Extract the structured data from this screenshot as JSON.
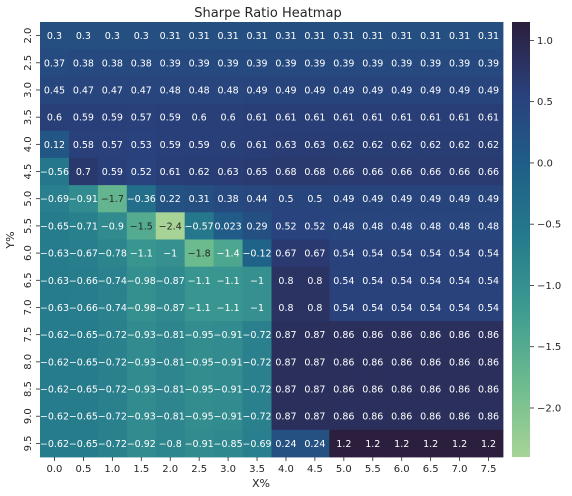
{
  "chart_data": {
    "type": "heatmap",
    "title": "Sharpe Ratio Heatmap",
    "xlabel": "X%",
    "ylabel": "Y%",
    "x_categories": [
      "0.0",
      "0.5",
      "1.0",
      "1.5",
      "2.0",
      "2.5",
      "3.0",
      "3.5",
      "4.0",
      "4.5",
      "5.0",
      "5.5",
      "6.0",
      "6.5",
      "7.0",
      "7.5"
    ],
    "y_categories": [
      "2.0",
      "2.5",
      "3.0",
      "3.5",
      "4.0",
      "4.5",
      "5.0",
      "5.5",
      "6.0",
      "6.5",
      "7.0",
      "7.5",
      "8.0",
      "8.5",
      "9.0",
      "9.5"
    ],
    "values": [
      [
        0.3,
        0.3,
        0.3,
        0.3,
        0.31,
        0.31,
        0.31,
        0.31,
        0.31,
        0.31,
        0.31,
        0.31,
        0.31,
        0.31,
        0.31,
        0.31
      ],
      [
        0.37,
        0.38,
        0.38,
        0.38,
        0.39,
        0.39,
        0.39,
        0.39,
        0.39,
        0.39,
        0.39,
        0.39,
        0.39,
        0.39,
        0.39,
        0.39
      ],
      [
        0.45,
        0.47,
        0.47,
        0.47,
        0.48,
        0.48,
        0.48,
        0.49,
        0.49,
        0.49,
        0.49,
        0.49,
        0.49,
        0.49,
        0.49,
        0.49
      ],
      [
        0.6,
        0.59,
        0.59,
        0.57,
        0.59,
        0.6,
        0.6,
        0.61,
        0.61,
        0.61,
        0.61,
        0.61,
        0.61,
        0.61,
        0.61,
        0.61
      ],
      [
        0.12,
        0.58,
        0.57,
        0.53,
        0.59,
        0.59,
        0.6,
        0.61,
        0.63,
        0.63,
        0.62,
        0.62,
        0.62,
        0.62,
        0.62,
        0.62
      ],
      [
        -0.56,
        0.7,
        0.59,
        0.52,
        0.61,
        0.62,
        0.63,
        0.65,
        0.68,
        0.68,
        0.66,
        0.66,
        0.66,
        0.66,
        0.66,
        0.66
      ],
      [
        -0.69,
        -0.91,
        -1.7,
        -0.36,
        0.22,
        0.31,
        0.38,
        0.44,
        0.5,
        0.5,
        0.49,
        0.49,
        0.49,
        0.49,
        0.49,
        0.49
      ],
      [
        -0.65,
        -0.71,
        -0.9,
        -1.5,
        -2.4,
        -0.57,
        0.023,
        0.29,
        0.52,
        0.52,
        0.48,
        0.48,
        0.48,
        0.48,
        0.48,
        0.48
      ],
      [
        -0.63,
        -0.67,
        -0.78,
        -1.1,
        -1,
        -1.8,
        -1.4,
        -0.12,
        0.67,
        0.67,
        0.54,
        0.54,
        0.54,
        0.54,
        0.54,
        0.54
      ],
      [
        -0.63,
        -0.66,
        -0.74,
        -0.98,
        -0.87,
        -1.1,
        -1.1,
        -1,
        0.8,
        0.8,
        0.54,
        0.54,
        0.54,
        0.54,
        0.54,
        0.54
      ],
      [
        -0.63,
        -0.66,
        -0.74,
        -0.98,
        -0.87,
        -1.1,
        -1.1,
        -1,
        0.8,
        0.8,
        0.54,
        0.54,
        0.54,
        0.54,
        0.54,
        0.54
      ],
      [
        -0.62,
        -0.65,
        -0.72,
        -0.93,
        -0.81,
        -0.95,
        -0.91,
        -0.72,
        0.87,
        0.87,
        0.86,
        0.86,
        0.86,
        0.86,
        0.86,
        0.86
      ],
      [
        -0.62,
        -0.65,
        -0.72,
        -0.93,
        -0.81,
        -0.95,
        -0.91,
        -0.72,
        0.87,
        0.87,
        0.86,
        0.86,
        0.86,
        0.86,
        0.86,
        0.86
      ],
      [
        -0.62,
        -0.65,
        -0.72,
        -0.93,
        -0.81,
        -0.95,
        -0.91,
        -0.72,
        0.87,
        0.87,
        0.86,
        0.86,
        0.86,
        0.86,
        0.86,
        0.86
      ],
      [
        -0.62,
        -0.65,
        -0.72,
        -0.93,
        -0.81,
        -0.95,
        -0.91,
        -0.72,
        0.87,
        0.87,
        0.86,
        0.86,
        0.86,
        0.86,
        0.86,
        0.86
      ],
      [
        -0.62,
        -0.65,
        -0.72,
        -0.92,
        -0.8,
        -0.91,
        -0.85,
        -0.69,
        0.24,
        0.24,
        1.2,
        1.2,
        1.2,
        1.2,
        1.2,
        1.2
      ]
    ],
    "colorbar": {
      "min": -2.4,
      "max": 1.15,
      "ticks": [
        1.0,
        0.5,
        0.0,
        -0.5,
        -1.0,
        -1.5,
        -2.0
      ],
      "tick_labels": [
        "1.0",
        "0.5",
        "0.0",
        "−0.5",
        "−1.0",
        "−1.5",
        "−2.0"
      ],
      "colormap": "crest",
      "color_stops": [
        "#a7d496",
        "#6dbb8f",
        "#3e9c91",
        "#267b8c",
        "#1f5f88",
        "#29417c",
        "#2c1e3d"
      ]
    },
    "annotation_text_colors": {
      "light_cells": "#262626",
      "dark_cells": "#ffffff"
    }
  }
}
